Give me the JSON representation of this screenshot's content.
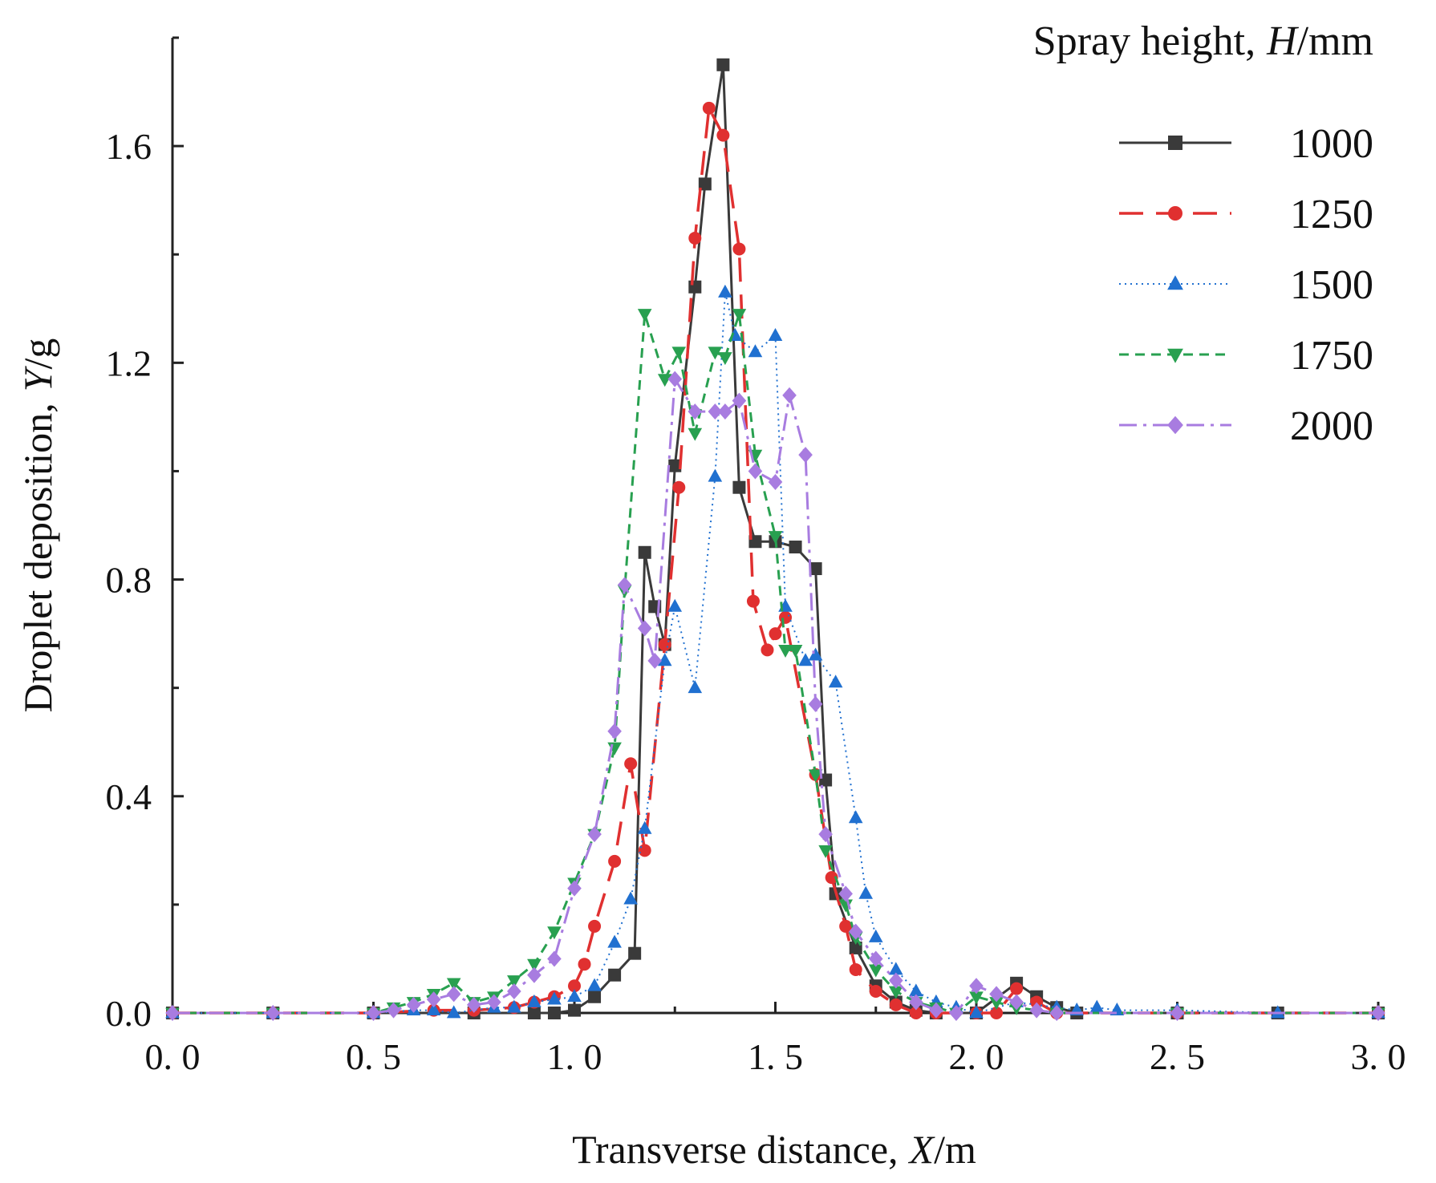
{
  "chart_data": {
    "type": "line",
    "xlabel_main": "Transverse distance,",
    "xlabel_var": "X",
    "xlabel_unit": "/m",
    "ylabel_main": "Droplet deposition,",
    "ylabel_var": "Y",
    "ylabel_unit": "/g",
    "xlim": [
      0,
      3
    ],
    "ylim": [
      0,
      1.8
    ],
    "x_ticks": [
      0,
      0.5,
      1.0,
      1.5,
      2.0,
      2.5,
      3.0
    ],
    "x_tick_labels": [
      "0. 0",
      "0. 5",
      "1. 0",
      "1. 5",
      "2. 0",
      "2. 5",
      "3. 0"
    ],
    "y_ticks": [
      0,
      0.4,
      0.8,
      1.2,
      1.6
    ],
    "y_tick_labels": [
      "0.0",
      "0.4",
      "0.8",
      "1.2",
      "1.6"
    ],
    "legend_title_main": "Spray height,",
    "legend_title_var": "H",
    "legend_title_unit": "/mm",
    "series": [
      {
        "name": "1000",
        "color": "#3a3a3a",
        "dash": "solid",
        "marker": "square",
        "points": [
          [
            0.0,
            0
          ],
          [
            0.25,
            0
          ],
          [
            0.5,
            0
          ],
          [
            0.75,
            0
          ],
          [
            0.9,
            0
          ],
          [
            0.95,
            0
          ],
          [
            1.0,
            0.005
          ],
          [
            1.05,
            0.03
          ],
          [
            1.1,
            0.07
          ],
          [
            1.15,
            0.11
          ],
          [
            1.175,
            0.85
          ],
          [
            1.2,
            0.75
          ],
          [
            1.225,
            0.68
          ],
          [
            1.25,
            1.01
          ],
          [
            1.3,
            1.34
          ],
          [
            1.325,
            1.53
          ],
          [
            1.37,
            1.75
          ],
          [
            1.41,
            0.97
          ],
          [
            1.45,
            0.87
          ],
          [
            1.5,
            0.87
          ],
          [
            1.55,
            0.86
          ],
          [
            1.6,
            0.82
          ],
          [
            1.625,
            0.43
          ],
          [
            1.65,
            0.22
          ],
          [
            1.7,
            0.12
          ],
          [
            1.75,
            0.05
          ],
          [
            1.8,
            0.02
          ],
          [
            1.85,
            0.005
          ],
          [
            1.9,
            0
          ],
          [
            2.0,
            0
          ],
          [
            2.1,
            0.055
          ],
          [
            2.15,
            0.03
          ],
          [
            2.2,
            0.01
          ],
          [
            2.25,
            0
          ],
          [
            2.5,
            0
          ],
          [
            2.75,
            0
          ],
          [
            3.0,
            0
          ]
        ]
      },
      {
        "name": "1250",
        "color": "#e03030",
        "dash": "30,16",
        "marker": "circle",
        "points": [
          [
            0.0,
            0
          ],
          [
            0.25,
            0
          ],
          [
            0.5,
            0
          ],
          [
            0.65,
            0.005
          ],
          [
            0.75,
            0.005
          ],
          [
            0.85,
            0.01
          ],
          [
            0.9,
            0.02
          ],
          [
            0.95,
            0.03
          ],
          [
            1.0,
            0.05
          ],
          [
            1.025,
            0.09
          ],
          [
            1.05,
            0.16
          ],
          [
            1.1,
            0.28
          ],
          [
            1.14,
            0.46
          ],
          [
            1.175,
            0.3
          ],
          [
            1.225,
            0.68
          ],
          [
            1.26,
            0.97
          ],
          [
            1.3,
            1.43
          ],
          [
            1.335,
            1.67
          ],
          [
            1.37,
            1.62
          ],
          [
            1.41,
            1.41
          ],
          [
            1.445,
            0.76
          ],
          [
            1.48,
            0.67
          ],
          [
            1.5,
            0.7
          ],
          [
            1.525,
            0.73
          ],
          [
            1.6,
            0.44
          ],
          [
            1.64,
            0.25
          ],
          [
            1.675,
            0.16
          ],
          [
            1.7,
            0.08
          ],
          [
            1.75,
            0.04
          ],
          [
            1.8,
            0.015
          ],
          [
            1.85,
            0
          ],
          [
            1.9,
            0
          ],
          [
            2.0,
            0
          ],
          [
            2.05,
            0
          ],
          [
            2.1,
            0.045
          ],
          [
            2.15,
            0.02
          ],
          [
            2.2,
            0
          ],
          [
            2.5,
            0
          ],
          [
            3.0,
            0
          ]
        ]
      },
      {
        "name": "1500",
        "color": "#2070d0",
        "dash": "2,5",
        "marker": "triangle-up",
        "points": [
          [
            0.0,
            0
          ],
          [
            0.25,
            0
          ],
          [
            0.5,
            0
          ],
          [
            0.6,
            0.005
          ],
          [
            0.65,
            0.005
          ],
          [
            0.7,
            0
          ],
          [
            0.8,
            0.01
          ],
          [
            0.85,
            0.01
          ],
          [
            0.9,
            0.02
          ],
          [
            0.95,
            0.025
          ],
          [
            1.0,
            0.03
          ],
          [
            1.05,
            0.05
          ],
          [
            1.1,
            0.13
          ],
          [
            1.14,
            0.21
          ],
          [
            1.175,
            0.34
          ],
          [
            1.225,
            0.65
          ],
          [
            1.25,
            0.75
          ],
          [
            1.3,
            0.6
          ],
          [
            1.35,
            0.99
          ],
          [
            1.375,
            1.33
          ],
          [
            1.4,
            1.25
          ],
          [
            1.45,
            1.22
          ],
          [
            1.5,
            1.25
          ],
          [
            1.525,
            0.75
          ],
          [
            1.575,
            0.65
          ],
          [
            1.6,
            0.66
          ],
          [
            1.65,
            0.61
          ],
          [
            1.7,
            0.36
          ],
          [
            1.725,
            0.22
          ],
          [
            1.75,
            0.14
          ],
          [
            1.8,
            0.08
          ],
          [
            1.85,
            0.04
          ],
          [
            1.9,
            0.02
          ],
          [
            1.95,
            0.01
          ],
          [
            2.0,
            0
          ],
          [
            2.1,
            0.02
          ],
          [
            2.2,
            0.01
          ],
          [
            2.25,
            0.005
          ],
          [
            2.3,
            0.01
          ],
          [
            2.35,
            0.005
          ],
          [
            2.5,
            0.005
          ],
          [
            2.75,
            0
          ],
          [
            3.0,
            0
          ]
        ]
      },
      {
        "name": "1750",
        "color": "#28a050",
        "dash": "12,8",
        "marker": "triangle-down",
        "points": [
          [
            0.0,
            0
          ],
          [
            0.25,
            0
          ],
          [
            0.5,
            0
          ],
          [
            0.55,
            0.01
          ],
          [
            0.6,
            0.02
          ],
          [
            0.65,
            0.035
          ],
          [
            0.7,
            0.055
          ],
          [
            0.75,
            0.02
          ],
          [
            0.8,
            0.03
          ],
          [
            0.85,
            0.06
          ],
          [
            0.9,
            0.09
          ],
          [
            0.95,
            0.15
          ],
          [
            1.0,
            0.24
          ],
          [
            1.05,
            0.33
          ],
          [
            1.1,
            0.49
          ],
          [
            1.125,
            0.78
          ],
          [
            1.175,
            1.29
          ],
          [
            1.225,
            1.17
          ],
          [
            1.26,
            1.22
          ],
          [
            1.3,
            1.07
          ],
          [
            1.35,
            1.22
          ],
          [
            1.375,
            1.21
          ],
          [
            1.41,
            1.29
          ],
          [
            1.45,
            1.03
          ],
          [
            1.5,
            0.88
          ],
          [
            1.525,
            0.67
          ],
          [
            1.55,
            0.67
          ],
          [
            1.6,
            0.44
          ],
          [
            1.625,
            0.3
          ],
          [
            1.675,
            0.2
          ],
          [
            1.7,
            0.14
          ],
          [
            1.75,
            0.08
          ],
          [
            1.8,
            0.04
          ],
          [
            1.85,
            0.02
          ],
          [
            1.9,
            0.01
          ],
          [
            1.95,
            0
          ],
          [
            2.0,
            0.03
          ],
          [
            2.05,
            0.02
          ],
          [
            2.1,
            0.01
          ],
          [
            2.2,
            0
          ],
          [
            2.5,
            0
          ],
          [
            3.0,
            0
          ]
        ]
      },
      {
        "name": "2000",
        "color": "#a87ce0",
        "dash": "22,8,4,8",
        "marker": "diamond",
        "points": [
          [
            0.0,
            0
          ],
          [
            0.25,
            0
          ],
          [
            0.5,
            0
          ],
          [
            0.55,
            0.005
          ],
          [
            0.6,
            0.015
          ],
          [
            0.65,
            0.025
          ],
          [
            0.7,
            0.035
          ],
          [
            0.75,
            0.015
          ],
          [
            0.8,
            0.02
          ],
          [
            0.85,
            0.04
          ],
          [
            0.9,
            0.07
          ],
          [
            0.95,
            0.1
          ],
          [
            1.0,
            0.23
          ],
          [
            1.05,
            0.33
          ],
          [
            1.1,
            0.52
          ],
          [
            1.125,
            0.79
          ],
          [
            1.175,
            0.71
          ],
          [
            1.2,
            0.65
          ],
          [
            1.25,
            1.17
          ],
          [
            1.3,
            1.11
          ],
          [
            1.35,
            1.11
          ],
          [
            1.375,
            1.11
          ],
          [
            1.41,
            1.13
          ],
          [
            1.45,
            1.0
          ],
          [
            1.5,
            0.98
          ],
          [
            1.535,
            1.14
          ],
          [
            1.575,
            1.03
          ],
          [
            1.6,
            0.57
          ],
          [
            1.625,
            0.33
          ],
          [
            1.675,
            0.22
          ],
          [
            1.7,
            0.15
          ],
          [
            1.75,
            0.1
          ],
          [
            1.8,
            0.06
          ],
          [
            1.85,
            0.02
          ],
          [
            1.9,
            0.005
          ],
          [
            1.95,
            0
          ],
          [
            2.0,
            0.05
          ],
          [
            2.05,
            0.035
          ],
          [
            2.1,
            0.02
          ],
          [
            2.15,
            0.005
          ],
          [
            2.2,
            0
          ],
          [
            2.5,
            0
          ],
          [
            3.0,
            0
          ]
        ]
      }
    ]
  }
}
